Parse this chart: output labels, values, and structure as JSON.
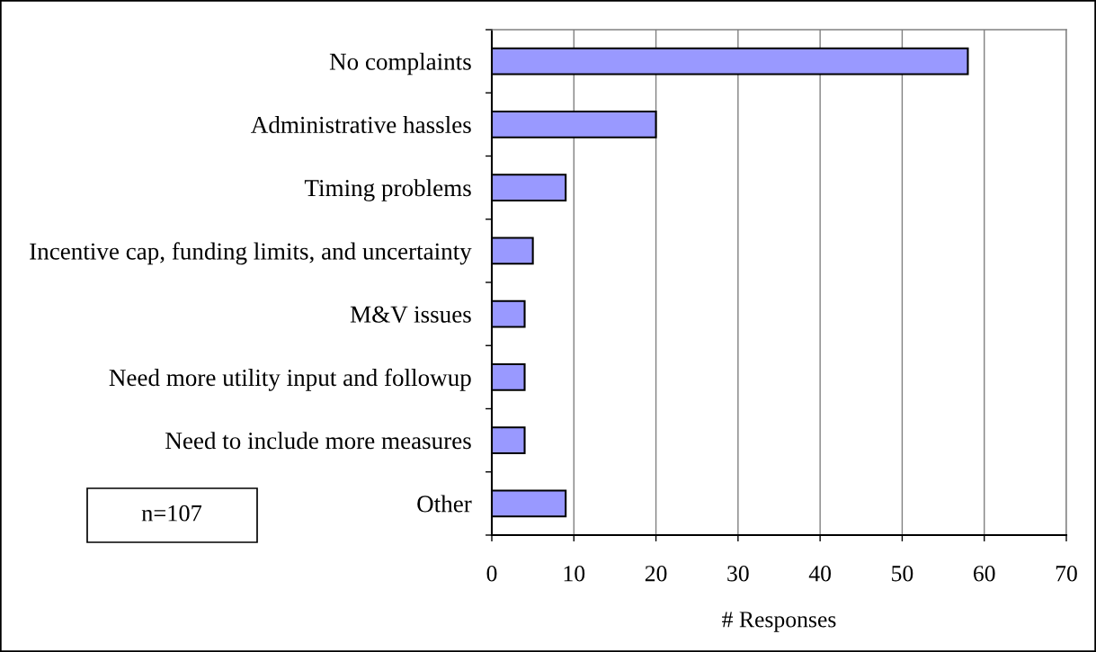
{
  "chart_data": {
    "type": "bar",
    "orientation": "horizontal",
    "categories": [
      "No complaints",
      "Administrative hassles",
      "Timing problems",
      "Incentive cap, funding limits, and uncertainty",
      "M&V issues",
      "Need more utility input and followup",
      "Need to include more measures",
      "Other"
    ],
    "values": [
      58,
      20,
      9,
      5,
      4,
      4,
      4,
      9
    ],
    "color": "#9999ff",
    "xlabel": "# Responses",
    "xlim": [
      0,
      70
    ],
    "xticks": [
      0,
      10,
      20,
      30,
      40,
      50,
      60,
      70
    ],
    "grid": "x",
    "annotations": [
      "n=107"
    ]
  }
}
